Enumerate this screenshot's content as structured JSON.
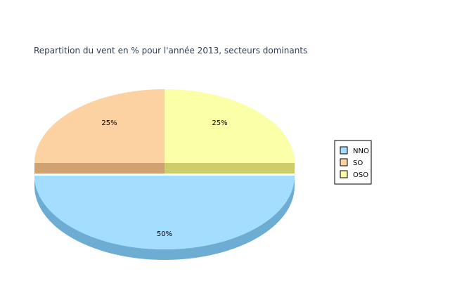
{
  "chart_data": {
    "type": "pie",
    "title": "Repartition du vent en % pour l'année 2013, secteurs dominants",
    "categories": [
      "NNO",
      "SO",
      "OSO"
    ],
    "values": [
      50,
      25,
      25
    ],
    "labels": [
      "50%",
      "25%",
      "25%"
    ],
    "colors": [
      "#a3ddff",
      "#fdd2a3",
      "#faffa8"
    ],
    "side_colors": [
      "#6eadd3",
      "#d0a171",
      "#cdcd6a"
    ],
    "exploded": [
      "NNO"
    ],
    "style": "3d",
    "legend": "right"
  }
}
